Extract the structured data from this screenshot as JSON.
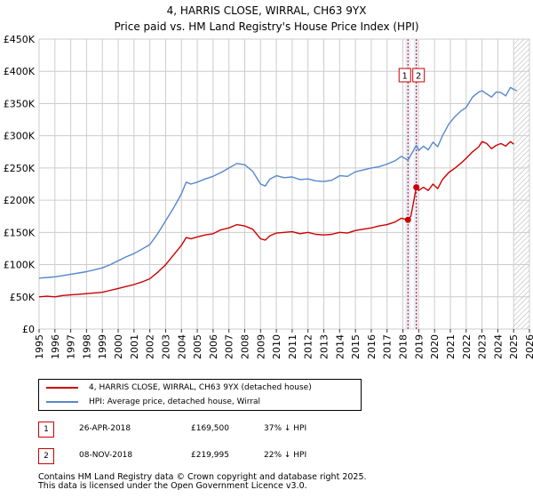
{
  "chart_data": {
    "type": "line",
    "title": "4, HARRIS CLOSE, WIRRAL, CH63 9YX",
    "subtitle": "Price paid vs. HM Land Registry's House Price Index (HPI)",
    "xlabel": "",
    "ylabel": "",
    "xlim": [
      1995,
      2026
    ],
    "ylim": [
      0,
      450000
    ],
    "y_ticks": [
      0,
      50000,
      100000,
      150000,
      200000,
      250000,
      300000,
      350000,
      400000,
      450000
    ],
    "y_tick_labels": [
      "£0",
      "£50K",
      "£100K",
      "£150K",
      "£200K",
      "£250K",
      "£300K",
      "£350K",
      "£400K",
      "£450K"
    ],
    "x_ticks": [
      1995,
      1996,
      1997,
      1998,
      1999,
      2000,
      2001,
      2002,
      2003,
      2004,
      2005,
      2006,
      2007,
      2008,
      2009,
      2010,
      2011,
      2012,
      2013,
      2014,
      2015,
      2016,
      2017,
      2018,
      2019,
      2020,
      2021,
      2022,
      2023,
      2024,
      2025,
      2026
    ],
    "x_tick_labels": [
      "1995",
      "1996",
      "1997",
      "1998",
      "1999",
      "2000",
      "2001",
      "2002",
      "2003",
      "2004",
      "2005",
      "2006",
      "2007",
      "2008",
      "2009",
      "2010",
      "2011",
      "2012",
      "2013",
      "2014",
      "2015",
      "2016",
      "2017",
      "2018",
      "2019",
      "2020",
      "2021",
      "2022",
      "2023",
      "2024",
      "2025",
      "2026"
    ],
    "grid": true,
    "forecast_start": 2025.0,
    "series": [
      {
        "name": "4, HARRIS CLOSE, WIRRAL, CH63 9YX (detached house)",
        "color": "#cc0000",
        "x": [
          1995.0,
          1995.5,
          1996.0,
          1996.5,
          1997.0,
          1997.5,
          1998.0,
          1998.5,
          1999.0,
          1999.5,
          2000.0,
          2000.5,
          2001.0,
          2001.5,
          2002.0,
          2002.5,
          2003.0,
          2003.5,
          2004.0,
          2004.3,
          2004.6,
          2005.0,
          2005.5,
          2006.0,
          2006.5,
          2007.0,
          2007.5,
          2008.0,
          2008.5,
          2009.0,
          2009.3,
          2009.6,
          2010.0,
          2010.5,
          2011.0,
          2011.5,
          2012.0,
          2012.5,
          2013.0,
          2013.5,
          2014.0,
          2014.5,
          2015.0,
          2015.5,
          2016.0,
          2016.5,
          2017.0,
          2017.5,
          2017.9,
          2018.32,
          2018.5,
          2018.85,
          2019.0,
          2019.3,
          2019.6,
          2019.9,
          2020.2,
          2020.5,
          2020.9,
          2021.3,
          2021.7,
          2022.0,
          2022.4,
          2022.8,
          2023.0,
          2023.3,
          2023.6,
          2023.9,
          2024.2,
          2024.5,
          2024.8,
          2025.0
        ],
        "values": [
          50000,
          51000,
          50000,
          52000,
          53000,
          54000,
          55000,
          56000,
          57000,
          60000,
          63000,
          66000,
          69000,
          73000,
          78000,
          88000,
          100000,
          115000,
          130000,
          142000,
          140000,
          143000,
          146000,
          148000,
          154000,
          157000,
          162000,
          160000,
          155000,
          140000,
          138000,
          145000,
          149000,
          150000,
          151000,
          148000,
          150000,
          147000,
          146000,
          147000,
          150000,
          149000,
          153000,
          155000,
          157000,
          160000,
          162000,
          166000,
          172000,
          169500,
          175000,
          219995,
          215000,
          220000,
          215000,
          225000,
          218000,
          232000,
          243000,
          250000,
          258000,
          265000,
          275000,
          283000,
          291000,
          288000,
          280000,
          285000,
          288000,
          284000,
          291000,
          287000
        ]
      },
      {
        "name": "HPI: Average price, detached house, Wirral",
        "color": "#5588cc",
        "x": [
          1995.0,
          1995.5,
          1996.0,
          1996.5,
          1997.0,
          1997.5,
          1998.0,
          1998.5,
          1999.0,
          1999.5,
          2000.0,
          2000.5,
          2001.0,
          2001.5,
          2002.0,
          2002.5,
          2003.0,
          2003.5,
          2004.0,
          2004.3,
          2004.6,
          2005.0,
          2005.5,
          2006.0,
          2006.5,
          2007.0,
          2007.5,
          2008.0,
          2008.5,
          2009.0,
          2009.3,
          2009.6,
          2010.0,
          2010.5,
          2011.0,
          2011.5,
          2012.0,
          2012.5,
          2013.0,
          2013.5,
          2014.0,
          2014.5,
          2015.0,
          2015.5,
          2016.0,
          2016.5,
          2017.0,
          2017.5,
          2017.9,
          2018.32,
          2018.5,
          2018.85,
          2019.0,
          2019.3,
          2019.6,
          2019.9,
          2020.2,
          2020.5,
          2020.9,
          2021.3,
          2021.7,
          2022.0,
          2022.4,
          2022.8,
          2023.0,
          2023.3,
          2023.6,
          2023.9,
          2024.2,
          2024.5,
          2024.8,
          2025.0,
          2025.2
        ],
        "values": [
          79000,
          80000,
          81000,
          83000,
          85000,
          87000,
          89000,
          92000,
          95000,
          100000,
          106000,
          112000,
          117000,
          124000,
          131000,
          148000,
          168000,
          188000,
          210000,
          228000,
          225000,
          228000,
          233000,
          237000,
          243000,
          250000,
          257000,
          255000,
          245000,
          225000,
          222000,
          233000,
          238000,
          235000,
          236000,
          232000,
          233000,
          230000,
          229000,
          231000,
          238000,
          237000,
          244000,
          247000,
          250000,
          252000,
          256000,
          261000,
          268000,
          262000,
          270000,
          285000,
          277000,
          284000,
          278000,
          290000,
          283000,
          300000,
          318000,
          330000,
          339000,
          344000,
          360000,
          368000,
          370000,
          365000,
          360000,
          368000,
          367000,
          362000,
          375000,
          372000,
          370000
        ]
      }
    ],
    "markers": [
      {
        "label": "1",
        "x": 2018.32,
        "value": 169500
      },
      {
        "label": "2",
        "x": 2018.85,
        "value": 219995
      }
    ]
  },
  "legend": {
    "price_paid_label": "4, HARRIS CLOSE, WIRRAL, CH63 9YX (detached house)",
    "hpi_label": "HPI: Average price, detached house, Wirral",
    "price_paid_color": "#cc0000",
    "hpi_color": "#5588cc"
  },
  "transactions": [
    {
      "num": "1",
      "date": "26-APR-2018",
      "price": "£169,500",
      "hpi_diff": "37% ↓ HPI"
    },
    {
      "num": "2",
      "date": "08-NOV-2018",
      "price": "£219,995",
      "hpi_diff": "22% ↓ HPI"
    }
  ],
  "footer": {
    "line1": "Contains HM Land Registry data © Crown copyright and database right 2025.",
    "line2": "This data is licensed under the Open Government Licence v3.0."
  }
}
